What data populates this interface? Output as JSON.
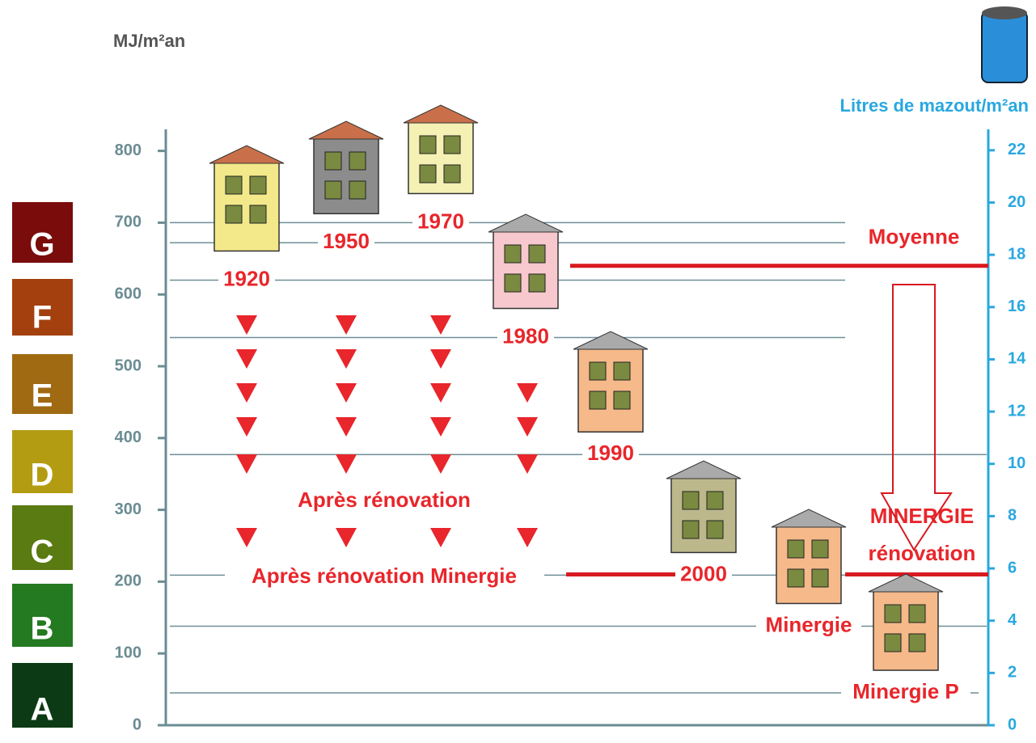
{
  "chart_data": {
    "type": "reference-levels",
    "y_label": "MJ/m²an",
    "y2_label": "Litres de mazout/m²an",
    "ylim": [
      0,
      830
    ],
    "yticks": [
      0,
      100,
      200,
      300,
      400,
      500,
      600,
      700,
      800
    ],
    "y2lim": [
      0,
      22.8
    ],
    "y2ticks": [
      0,
      2,
      4,
      6,
      8,
      10,
      12,
      14,
      16,
      18,
      20,
      22
    ],
    "energy_classes": [
      {
        "label": "G",
        "color": "#7a0c0c"
      },
      {
        "label": "F",
        "color": "#a4400e"
      },
      {
        "label": "E",
        "color": "#a06a12"
      },
      {
        "label": "D",
        "color": "#b49c12"
      },
      {
        "label": "C",
        "color": "#5a7a12"
      },
      {
        "label": "B",
        "color": "#237a20"
      },
      {
        "label": "A",
        "color": "#0c3a14"
      }
    ],
    "buildings": [
      {
        "label": "1920",
        "value": 620,
        "color": "#f3e98a"
      },
      {
        "label": "1950",
        "value": 672,
        "color": "#8c8c8c"
      },
      {
        "label": "1970",
        "value": 700,
        "color": "#f5f0b4"
      },
      {
        "label": "1980",
        "value": 540,
        "color": "#f7c8cd"
      },
      {
        "label": "1990",
        "value": 377,
        "color": "#f5b98a"
      },
      {
        "label": "2000",
        "value": 209,
        "color": "#bcb88c"
      },
      {
        "label": "Minergie",
        "value": 138,
        "color": "#f5b98a"
      },
      {
        "label": "Minergie P",
        "value": 45,
        "color": "#f5b98a"
      }
    ],
    "reference_lines": [
      {
        "label": [
          "Moyenne"
        ],
        "value": 640
      },
      {
        "label": [
          "MINERGIE",
          "rénovation"
        ],
        "value": 210
      }
    ],
    "annotations": [
      "Après rénovation",
      "Après rénovation Minergie"
    ]
  }
}
